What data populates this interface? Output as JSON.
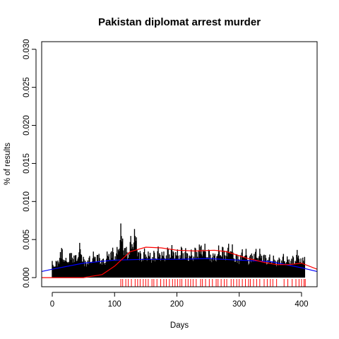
{
  "chart_data": {
    "type": "bar",
    "title": "Pakistan diplomat arrest murder",
    "xlabel": "Days",
    "ylabel": "% of results",
    "xlim": [
      -17,
      425
    ],
    "ylim": [
      -0.0012,
      0.031
    ],
    "x_ticks": [
      0,
      100,
      200,
      300,
      400
    ],
    "x_tick_labels": [
      "0",
      "100",
      "200",
      "300",
      "400"
    ],
    "y_ticks": [
      0,
      0.005,
      0.01,
      0.015,
      0.02,
      0.025,
      0.03
    ],
    "y_tick_labels": [
      "0.000",
      "0.005",
      "0.010",
      "0.015",
      "0.020",
      "0.025",
      "0.030"
    ],
    "grid": false,
    "legend": "none",
    "bar_color": "#000000",
    "bars_profile": [
      {
        "x": 0,
        "y": 0.0022
      },
      {
        "x": 8,
        "y": 0.0024
      },
      {
        "x": 15,
        "y": 0.0044
      },
      {
        "x": 22,
        "y": 0.0026
      },
      {
        "x": 30,
        "y": 0.0038
      },
      {
        "x": 38,
        "y": 0.0032
      },
      {
        "x": 45,
        "y": 0.0048
      },
      {
        "x": 52,
        "y": 0.0024
      },
      {
        "x": 60,
        "y": 0.003
      },
      {
        "x": 68,
        "y": 0.0036
      },
      {
        "x": 75,
        "y": 0.0034
      },
      {
        "x": 82,
        "y": 0.0026
      },
      {
        "x": 90,
        "y": 0.0038
      },
      {
        "x": 97,
        "y": 0.0042
      },
      {
        "x": 103,
        "y": 0.0036
      },
      {
        "x": 110,
        "y": 0.0074
      },
      {
        "x": 115,
        "y": 0.0052
      },
      {
        "x": 120,
        "y": 0.004
      },
      {
        "x": 126,
        "y": 0.0056
      },
      {
        "x": 133,
        "y": 0.007
      },
      {
        "x": 140,
        "y": 0.0036
      },
      {
        "x": 150,
        "y": 0.004
      },
      {
        "x": 160,
        "y": 0.0034
      },
      {
        "x": 170,
        "y": 0.0042
      },
      {
        "x": 180,
        "y": 0.0036
      },
      {
        "x": 190,
        "y": 0.0046
      },
      {
        "x": 200,
        "y": 0.0038
      },
      {
        "x": 210,
        "y": 0.0044
      },
      {
        "x": 220,
        "y": 0.0036
      },
      {
        "x": 230,
        "y": 0.0042
      },
      {
        "x": 240,
        "y": 0.005
      },
      {
        "x": 250,
        "y": 0.004
      },
      {
        "x": 260,
        "y": 0.0034
      },
      {
        "x": 270,
        "y": 0.0046
      },
      {
        "x": 280,
        "y": 0.004
      },
      {
        "x": 285,
        "y": 0.0054
      },
      {
        "x": 292,
        "y": 0.0036
      },
      {
        "x": 300,
        "y": 0.0032
      },
      {
        "x": 308,
        "y": 0.0044
      },
      {
        "x": 315,
        "y": 0.003
      },
      {
        "x": 322,
        "y": 0.0038
      },
      {
        "x": 330,
        "y": 0.004
      },
      {
        "x": 338,
        "y": 0.0036
      },
      {
        "x": 345,
        "y": 0.003
      },
      {
        "x": 352,
        "y": 0.0032
      },
      {
        "x": 360,
        "y": 0.0026
      },
      {
        "x": 370,
        "y": 0.0032
      },
      {
        "x": 380,
        "y": 0.0028
      },
      {
        "x": 390,
        "y": 0.0032
      },
      {
        "x": 395,
        "y": 0.004
      },
      {
        "x": 400,
        "y": 0.0024
      },
      {
        "x": 405,
        "y": 0.0038
      }
    ],
    "series": [
      {
        "color": "#0000ff",
        "type": "line",
        "points": [
          {
            "x": -17,
            "y": 0.0008
          },
          {
            "x": 0,
            "y": 0.0011
          },
          {
            "x": 50,
            "y": 0.0019
          },
          {
            "x": 100,
            "y": 0.0023
          },
          {
            "x": 150,
            "y": 0.0024
          },
          {
            "x": 200,
            "y": 0.0024
          },
          {
            "x": 250,
            "y": 0.0025
          },
          {
            "x": 300,
            "y": 0.0023
          },
          {
            "x": 350,
            "y": 0.0021
          },
          {
            "x": 400,
            "y": 0.0013
          },
          {
            "x": 425,
            "y": 0.0008
          }
        ]
      },
      {
        "color": "#ff0000",
        "type": "line",
        "points": [
          {
            "x": -17,
            "y": 0.0
          },
          {
            "x": 0,
            "y": 0.0
          },
          {
            "x": 50,
            "y": 0.0
          },
          {
            "x": 80,
            "y": 0.0004
          },
          {
            "x": 100,
            "y": 0.0015
          },
          {
            "x": 125,
            "y": 0.0034
          },
          {
            "x": 150,
            "y": 0.004
          },
          {
            "x": 175,
            "y": 0.0039
          },
          {
            "x": 200,
            "y": 0.0036
          },
          {
            "x": 230,
            "y": 0.0035
          },
          {
            "x": 260,
            "y": 0.0036
          },
          {
            "x": 280,
            "y": 0.0034
          },
          {
            "x": 310,
            "y": 0.0026
          },
          {
            "x": 340,
            "y": 0.002
          },
          {
            "x": 360,
            "y": 0.0017
          },
          {
            "x": 380,
            "y": 0.0017
          },
          {
            "x": 400,
            "y": 0.0019
          },
          {
            "x": 425,
            "y": 0.0011
          }
        ]
      }
    ],
    "rug_color": "#ff0000",
    "rug_x": [
      110,
      113,
      118,
      122,
      127,
      133,
      137,
      141,
      146,
      150,
      154,
      160,
      163,
      168,
      174,
      179,
      183,
      188,
      193,
      197,
      201,
      205,
      208,
      214,
      218,
      222,
      226,
      231,
      238,
      241,
      246,
      252,
      257,
      263,
      266,
      271,
      276,
      280,
      287,
      291,
      296,
      300,
      305,
      310,
      315,
      318,
      323,
      328,
      333,
      340,
      345,
      350,
      354,
      360,
      372,
      378,
      385,
      391,
      396,
      400,
      404,
      406
    ]
  }
}
